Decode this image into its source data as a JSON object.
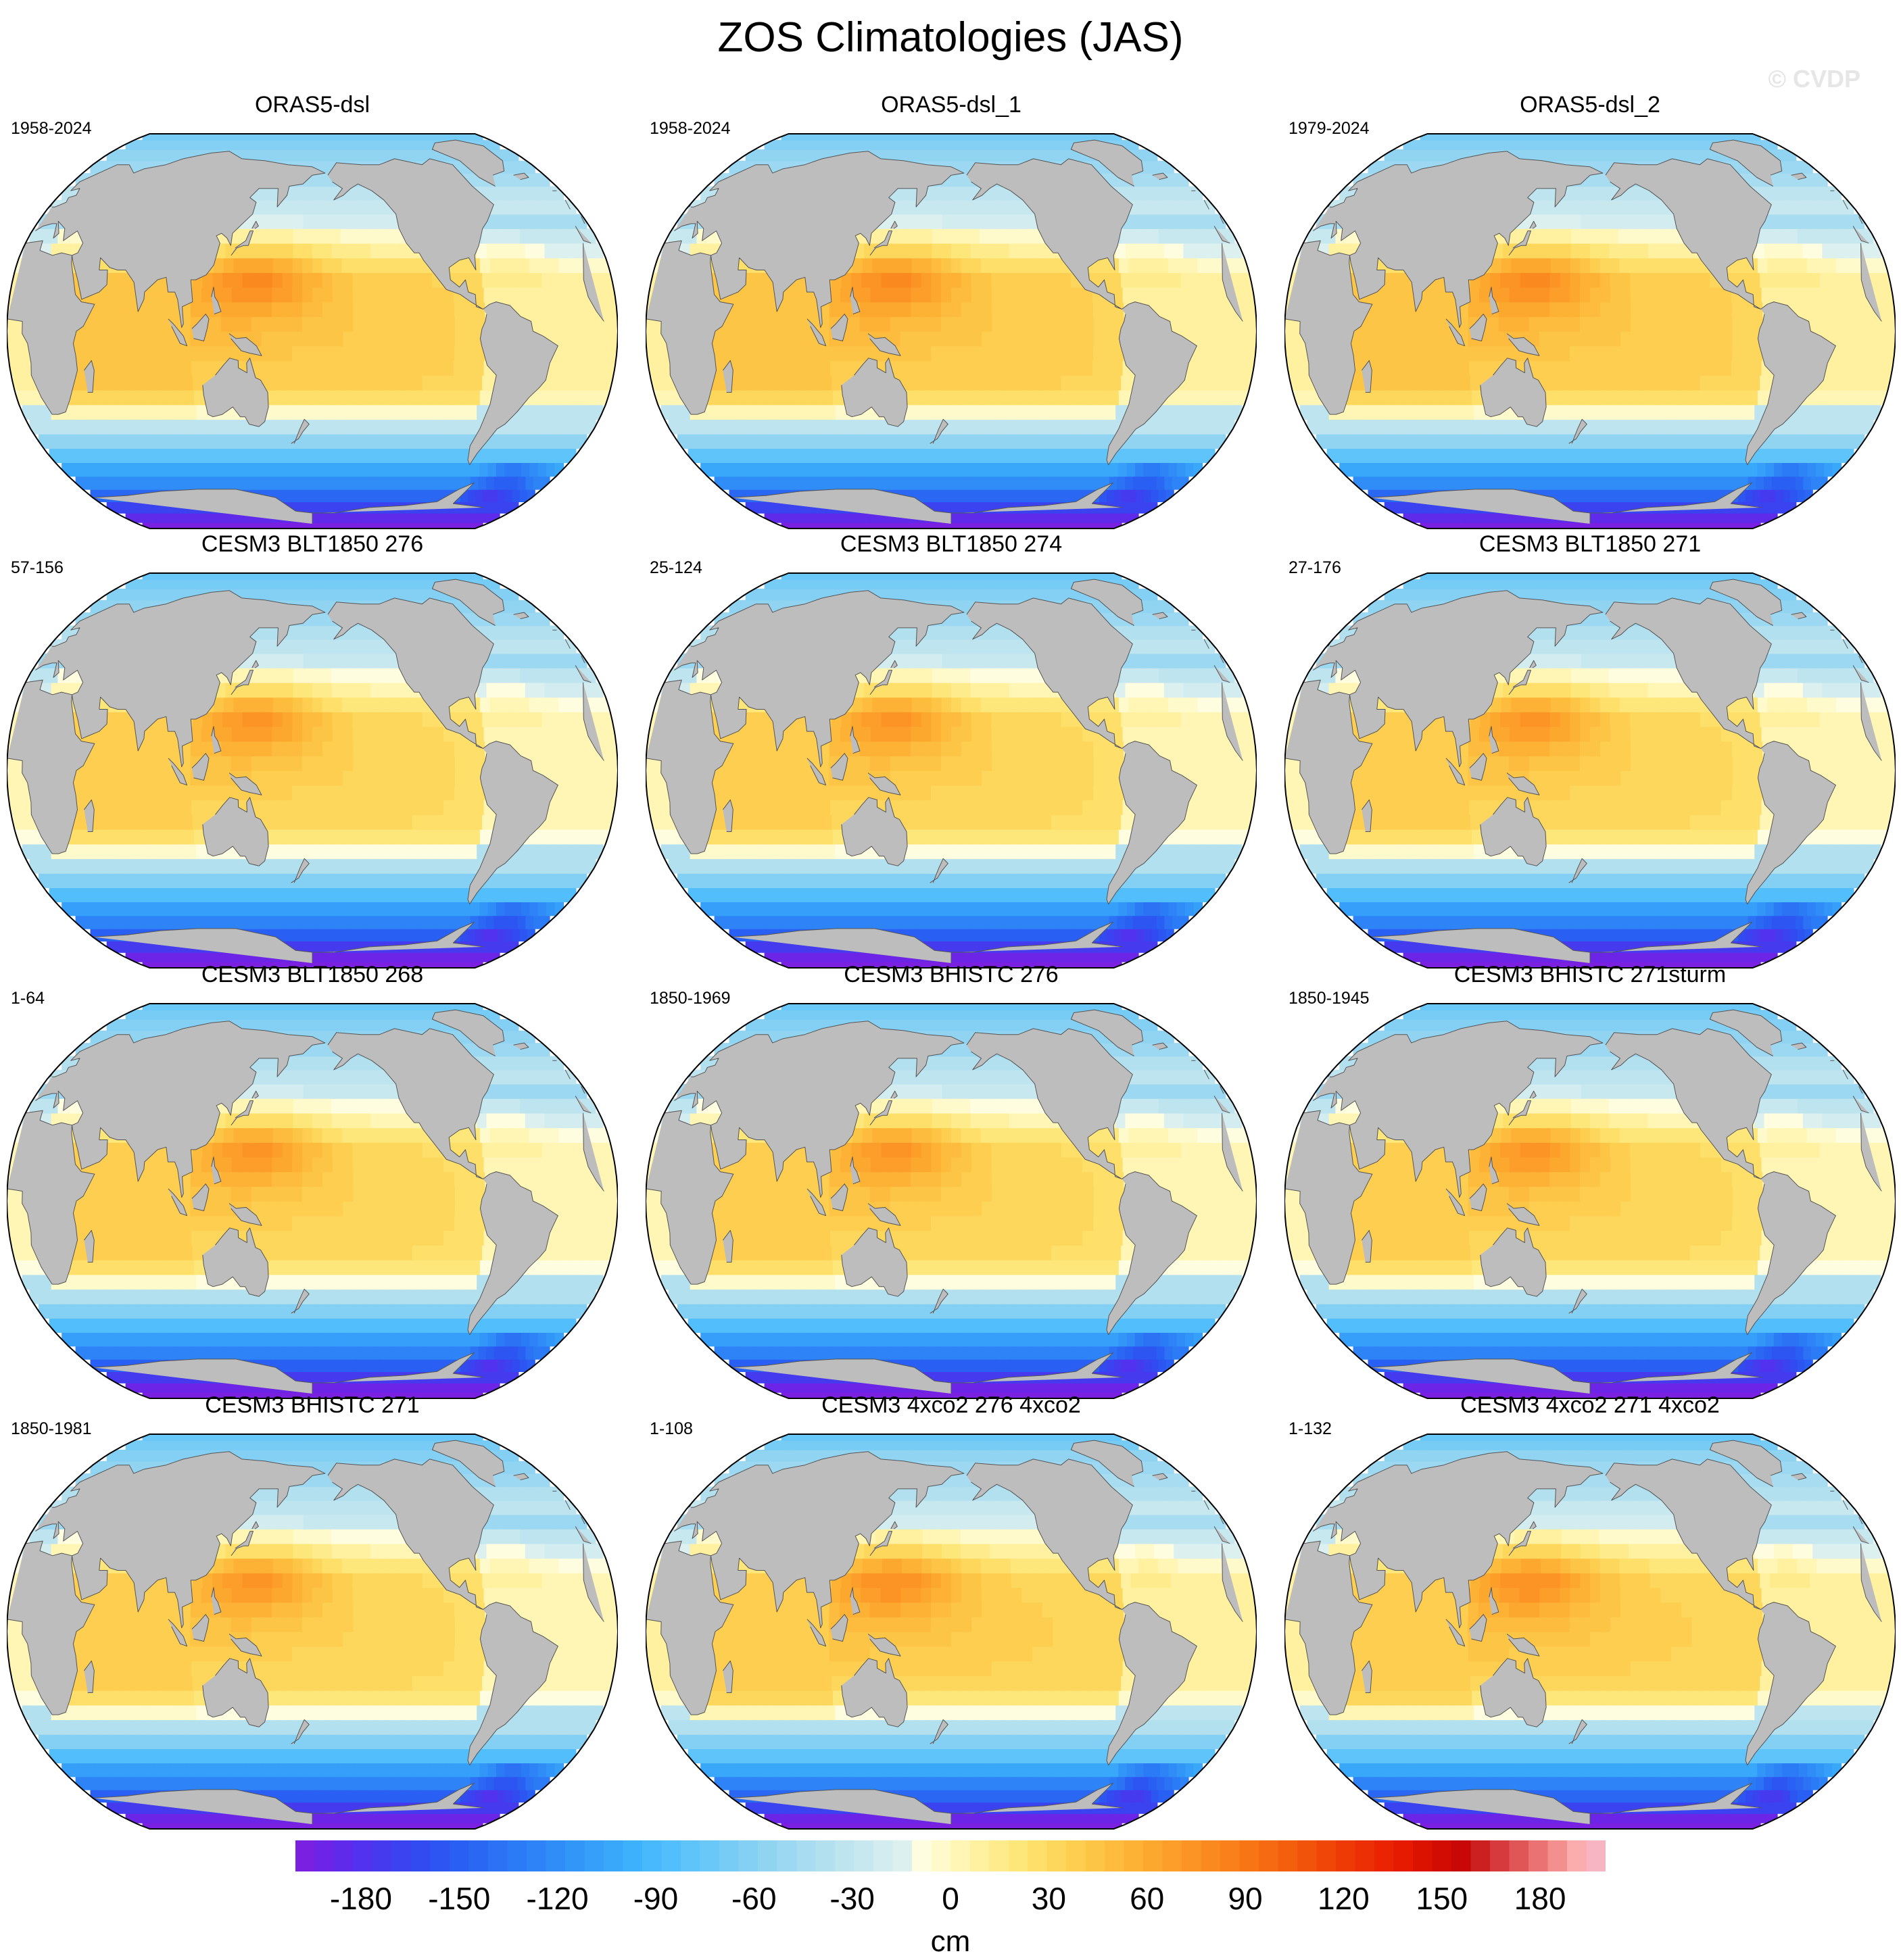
{
  "figure": {
    "title": "ZOS Climatologies (JAS)",
    "watermark": "© CVDP"
  },
  "chart_data": {
    "type": "heatmap",
    "title": "ZOS Climatologies (JAS)",
    "projection": "Robinson, Pacific-centered",
    "season": "JAS",
    "units": "cm",
    "panels": [
      {
        "name": "ORAS5-dsl",
        "period": "1958-2024"
      },
      {
        "name": "ORAS5-dsl_1",
        "period": "1958-2024"
      },
      {
        "name": "ORAS5-dsl_2",
        "period": "1979-2024"
      },
      {
        "name": "CESM3 BLT1850 276",
        "period": "57-156"
      },
      {
        "name": "CESM3 BLT1850 274",
        "period": "25-124"
      },
      {
        "name": "CESM3 BLT1850 271",
        "period": "27-176"
      },
      {
        "name": "CESM3 BLT1850 268",
        "period": "1-64"
      },
      {
        "name": "CESM3 BHISTC 276",
        "period": "1850-1969"
      },
      {
        "name": "CESM3 BHISTC 271sturm",
        "period": "1850-1945"
      },
      {
        "name": "CESM3 BHISTC 271",
        "period": "1850-1981"
      },
      {
        "name": "CESM3 4xco2 276 4xco2",
        "period": "1-108"
      },
      {
        "name": "CESM3 4xco2 271 4xco2",
        "period": "1-132"
      }
    ],
    "colorbar": {
      "label": "cm",
      "range": [
        -200,
        200
      ],
      "interval": 5,
      "tick_labels": [
        "-180",
        "-150",
        "-120",
        "-90",
        "-60",
        "-30",
        "0",
        "30",
        "60",
        "90",
        "120",
        "150",
        "180"
      ],
      "colors": [
        "#7a20e0",
        "#6c24e6",
        "#5f2aea",
        "#5232ee",
        "#463aef",
        "#3b42f0",
        "#324bf1",
        "#2c55f2",
        "#2a5ff3",
        "#2a68f4",
        "#2b72f5",
        "#2c7bf6",
        "#2e84f7",
        "#308df8",
        "#3296f9",
        "#359ffa",
        "#39a8fb",
        "#3eb1fc",
        "#47b9fc",
        "#52bffc",
        "#5ec4fa",
        "#6ac8f8",
        "#77ccf6",
        "#84d0f4",
        "#90d4f2",
        "#9cd8f1",
        "#a8dcf0",
        "#b3e0ef",
        "#bee4ef",
        "#c8e8ef",
        "#d2ecef",
        "#dcf0ef",
        "#fffde0",
        "#fffacc",
        "#fff6b6",
        "#fff1a0",
        "#feec8c",
        "#fde67a",
        "#fddf6a",
        "#fdd75c",
        "#fdce50",
        "#fdc546",
        "#fdbc3d",
        "#fdb236",
        "#fca82f",
        "#fc9e29",
        "#fb9424",
        "#fa8a1f",
        "#f9801a",
        "#f87516",
        "#f66a12",
        "#f45f0e",
        "#f2530b",
        "#f04708",
        "#ee3b06",
        "#ec2f04",
        "#ea2302",
        "#e51a00",
        "#dc1200",
        "#d20c02",
        "#c70806",
        "#cc2020",
        "#d63a3c",
        "#e05656",
        "#ea7272",
        "#f38f8f",
        "#fbacac",
        "#f7b4c2"
      ]
    }
  }
}
